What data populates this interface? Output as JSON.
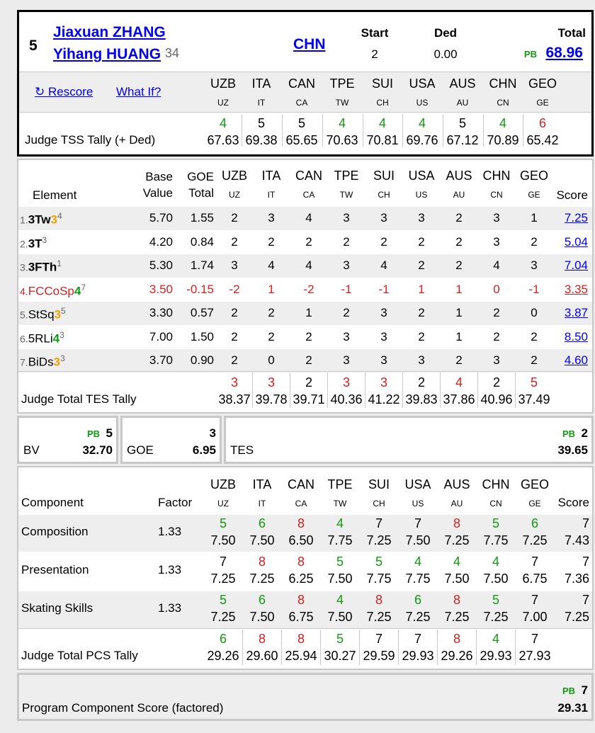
{
  "skater": {
    "rank": "5",
    "name1": "Jiaxuan ZHANG",
    "name2": "Yihang HUANG",
    "age": "34",
    "nation": "CHN",
    "start_label": "Start",
    "start_value": "2",
    "ded_label": "Ded",
    "ded_value": "0.00",
    "total_label": "Total",
    "total_pb": "PB",
    "total_value": "68.96"
  },
  "actions": {
    "rescore": "↻ Rescore",
    "what_if": "What If?"
  },
  "judges": [
    {
      "code": "UZB",
      "sub": "UZ"
    },
    {
      "code": "ITA",
      "sub": "IT"
    },
    {
      "code": "CAN",
      "sub": "CA"
    },
    {
      "code": "TPE",
      "sub": "TW"
    },
    {
      "code": "SUI",
      "sub": "CH"
    },
    {
      "code": "USA",
      "sub": "US"
    },
    {
      "code": "AUS",
      "sub": "AU"
    },
    {
      "code": "CHN",
      "sub": "CN"
    },
    {
      "code": "GEO",
      "sub": "GE"
    }
  ],
  "tss_tally": {
    "label": "Judge TSS Tally (+ Ded)",
    "ranks": [
      "4",
      "5",
      "5",
      "4",
      "4",
      "4",
      "5",
      "4",
      "6"
    ],
    "rank_colors": [
      "green",
      "",
      "",
      "green",
      "green",
      "green",
      "",
      "green",
      "red"
    ],
    "values": [
      "67.63",
      "69.38",
      "65.65",
      "70.63",
      "70.81",
      "69.76",
      "67.12",
      "70.89",
      "65.42"
    ]
  },
  "elements": {
    "header": {
      "element": "Element",
      "base1": "Base",
      "base2": "Value",
      "goe1": "GOE",
      "goe2": "Total",
      "score": "Score"
    },
    "rows": [
      {
        "num": "1.",
        "name": "3Tw",
        "lvl": "3",
        "sup": "4",
        "bold": true,
        "red": false,
        "base": "5.70",
        "goe": "1.55",
        "marks": [
          "2",
          "3",
          "4",
          "3",
          "3",
          "3",
          "2",
          "3",
          "1"
        ],
        "score": "7.25"
      },
      {
        "num": "2.",
        "name": "3T",
        "lvl": "",
        "sup": "3",
        "bold": true,
        "red": false,
        "base": "4.20",
        "goe": "0.84",
        "marks": [
          "2",
          "2",
          "2",
          "2",
          "2",
          "2",
          "2",
          "3",
          "2"
        ],
        "score": "5.04"
      },
      {
        "num": "3.",
        "name": "3FTh",
        "lvl": "",
        "sup": "1",
        "bold": true,
        "red": false,
        "base": "5.30",
        "goe": "1.74",
        "marks": [
          "3",
          "4",
          "4",
          "3",
          "4",
          "2",
          "2",
          "4",
          "3"
        ],
        "score": "7.04"
      },
      {
        "num": "4.",
        "name": "FCCoSp",
        "lvl": "4",
        "sup": "7",
        "bold": false,
        "red": true,
        "base": "3.50",
        "goe": "-0.15",
        "marks": [
          "-2",
          "1",
          "-2",
          "-1",
          "-1",
          "1",
          "1",
          "0",
          "-1"
        ],
        "score": "3.35"
      },
      {
        "num": "5.",
        "name": "StSq",
        "lvl": "3",
        "sup": "5",
        "bold": false,
        "red": false,
        "base": "3.30",
        "goe": "0.57",
        "marks": [
          "2",
          "2",
          "1",
          "2",
          "3",
          "2",
          "1",
          "2",
          "0"
        ],
        "score": "3.87"
      },
      {
        "num": "6.",
        "name": "5RLi",
        "lvl": "4",
        "sup": "3",
        "bold": false,
        "red": false,
        "base": "7.00",
        "goe": "1.50",
        "marks": [
          "2",
          "2",
          "2",
          "3",
          "3",
          "2",
          "1",
          "2",
          "2"
        ],
        "score": "8.50"
      },
      {
        "num": "7.",
        "name": "BiDs",
        "lvl": "3",
        "sup": "3",
        "bold": false,
        "red": false,
        "base": "3.70",
        "goe": "0.90",
        "marks": [
          "2",
          "0",
          "2",
          "3",
          "3",
          "3",
          "2",
          "3",
          "2"
        ],
        "score": "4.60"
      }
    ]
  },
  "tes_tally": {
    "label": "Judge Total TES Tally",
    "ranks": [
      "3",
      "3",
      "2",
      "3",
      "3",
      "2",
      "4",
      "2",
      "5"
    ],
    "rank_colors": [
      "red",
      "red",
      "",
      "red",
      "red",
      "",
      "red",
      "",
      "red"
    ],
    "values": [
      "38.37",
      "39.78",
      "39.71",
      "40.36",
      "41.22",
      "39.83",
      "37.86",
      "40.96",
      "37.49"
    ]
  },
  "summary": {
    "bv_label": "BV",
    "bv_pb": "PB",
    "bv_rank": "5",
    "bv_value": "32.70",
    "goe_label": "GOE",
    "goe_rank": "3",
    "goe_value": "6.95",
    "tes_label": "TES",
    "tes_pb": "PB",
    "tes_rank": "2",
    "tes_value": "39.65"
  },
  "components": {
    "header": {
      "component": "Component",
      "factor": "Factor",
      "score": "Score"
    },
    "rows": [
      {
        "name": "Composition",
        "factor": "1.33",
        "ranks": [
          "5",
          "6",
          "8",
          "4",
          "7",
          "7",
          "8",
          "5",
          "6"
        ],
        "rank_colors": [
          "green",
          "green",
          "red",
          "green",
          "",
          "",
          "red",
          "green",
          "green"
        ],
        "marks": [
          "7.50",
          "7.50",
          "6.50",
          "7.75",
          "7.25",
          "7.50",
          "7.25",
          "7.75",
          "7.25"
        ],
        "score_rank": "7",
        "score": "7.43"
      },
      {
        "name": "Presentation",
        "factor": "1.33",
        "ranks": [
          "7",
          "8",
          "8",
          "5",
          "5",
          "4",
          "4",
          "4",
          "7"
        ],
        "rank_colors": [
          "",
          "red",
          "red",
          "green",
          "green",
          "green",
          "green",
          "green",
          ""
        ],
        "marks": [
          "7.25",
          "7.25",
          "6.25",
          "7.50",
          "7.75",
          "7.75",
          "7.50",
          "7.50",
          "6.75"
        ],
        "score_rank": "7",
        "score": "7.36"
      },
      {
        "name": "Skating Skills",
        "factor": "1.33",
        "ranks": [
          "5",
          "6",
          "8",
          "4",
          "8",
          "6",
          "8",
          "5",
          "7"
        ],
        "rank_colors": [
          "green",
          "green",
          "red",
          "green",
          "red",
          "green",
          "red",
          "green",
          ""
        ],
        "marks": [
          "7.25",
          "7.50",
          "6.75",
          "7.50",
          "7.25",
          "7.25",
          "7.25",
          "7.25",
          "7.00"
        ],
        "score_rank": "7",
        "score": "7.25"
      }
    ]
  },
  "pcs_tally": {
    "label": "Judge Total PCS Tally",
    "ranks": [
      "6",
      "8",
      "8",
      "5",
      "7",
      "7",
      "8",
      "4",
      "7"
    ],
    "rank_colors": [
      "green",
      "red",
      "red",
      "green",
      "",
      "",
      "red",
      "green",
      ""
    ],
    "values": [
      "29.26",
      "29.60",
      "25.94",
      "30.27",
      "29.59",
      "29.93",
      "29.26",
      "29.93",
      "27.93"
    ]
  },
  "pcs_total": {
    "label": "Program Component Score (factored)",
    "pb": "PB",
    "rank": "7",
    "value": "29.31"
  }
}
